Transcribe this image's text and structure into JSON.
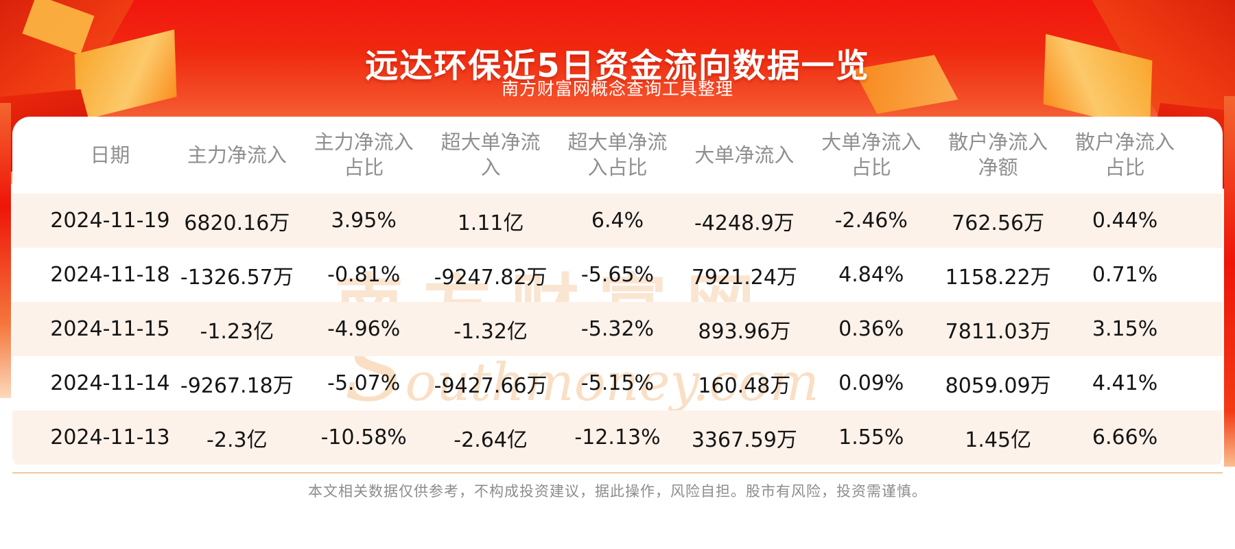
{
  "page": {
    "title": "远达环保近5日资金流向数据一览",
    "subtitle": "南方财富网概念查询工具整理",
    "watermark_cn": "南方财富网",
    "watermark_en": "Southmoney.com",
    "disclaimer": "本文相关数据仅供参考，不构成投资建议，据此操作，风险自担。股市有风险，投资需谨慎。"
  },
  "colors": {
    "banner_red": "#f2160f",
    "banner_orange": "#fbab6c",
    "gift_gold": "#f9a62c",
    "row_alt_bg": "#fdf2ea",
    "header_text": "#8f8f8f",
    "cell_text": "#151515",
    "divider_tan": "#f0c79c",
    "watermark_tan": "#f6cba4"
  },
  "table": {
    "display_headers": [
      "日期",
      "主力净流入",
      "主力净流入\n占比",
      "超大单净流\n入",
      "超大单净流\n入占比",
      "大单净流入",
      "大单净流入\n占比",
      "散户净流入\n净额",
      "散户净流入\n占比"
    ]
  },
  "chart_data": {
    "type": "table",
    "title": "远达环保近5日资金流向数据一览",
    "columns": [
      "日期",
      "主力净流入",
      "主力净流入占比",
      "超大单净流入",
      "超大单净流入占比",
      "大单净流入",
      "大单净流入占比",
      "散户净流入净额",
      "散户净流入占比"
    ],
    "rows": [
      [
        "2024-11-19",
        "6820.16万",
        "3.95%",
        "1.11亿",
        "6.4%",
        "-4248.9万",
        "-2.46%",
        "762.56万",
        "0.44%"
      ],
      [
        "2024-11-18",
        "-1326.57万",
        "-0.81%",
        "-9247.82万",
        "-5.65%",
        "7921.24万",
        "4.84%",
        "1158.22万",
        "0.71%"
      ],
      [
        "2024-11-15",
        "-1.23亿",
        "-4.96%",
        "-1.32亿",
        "-5.32%",
        "893.96万",
        "0.36%",
        "7811.03万",
        "3.15%"
      ],
      [
        "2024-11-14",
        "-9267.18万",
        "-5.07%",
        "-9427.66万",
        "-5.15%",
        "160.48万",
        "0.09%",
        "8059.09万",
        "4.41%"
      ],
      [
        "2024-11-13",
        "-2.3亿",
        "-10.58%",
        "-2.64亿",
        "-12.13%",
        "3367.59万",
        "1.55%",
        "1.45亿",
        "6.66%"
      ]
    ]
  }
}
